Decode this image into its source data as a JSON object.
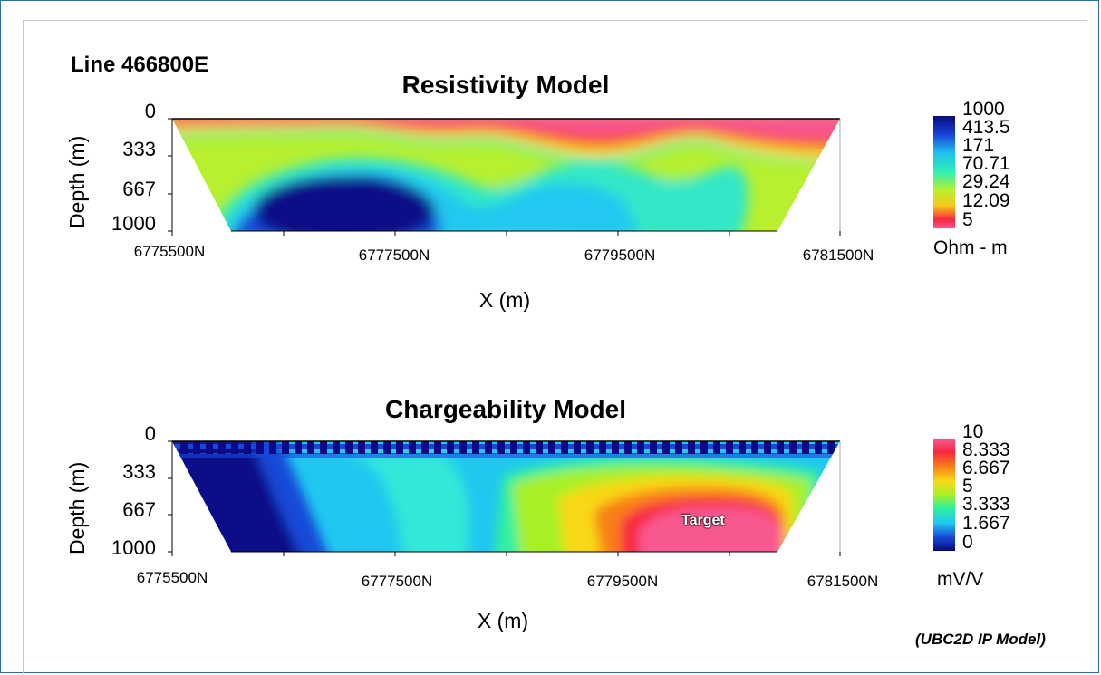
{
  "header": {
    "line_title": "Line 466800E",
    "footnote": "(UBC2D IP Model)"
  },
  "chart_data": [
    {
      "type": "heatmap",
      "title": "Resistivity Model",
      "xlabel": "X (m)",
      "ylabel": "Depth (m)",
      "x_ticks": [
        "6775500N",
        "6777500N",
        "6779500N",
        "6781500N"
      ],
      "y_ticks": [
        "0",
        "333",
        "667",
        "1000"
      ],
      "xlim": [
        6775500,
        6781500
      ],
      "ylim": [
        1000,
        0
      ],
      "colorbar": {
        "ticks": [
          "1000",
          "413.5",
          "171",
          "70.71",
          "29.24",
          "12.09",
          "5"
        ],
        "unit": "Ohm - m",
        "scale": "log",
        "colors": [
          "#0a0a78",
          "#1840d8",
          "#20c0f0",
          "#30f0b0",
          "#b8f030",
          "#f8c818",
          "#f82840",
          "#f85890"
        ]
      }
    },
    {
      "type": "heatmap",
      "title": "Chargeability Model",
      "xlabel": "X (m)",
      "ylabel": "Depth (m)",
      "x_ticks": [
        "6775500N",
        "6777500N",
        "6779500N",
        "6781500N"
      ],
      "y_ticks": [
        "0",
        "333",
        "667",
        "1000"
      ],
      "xlim": [
        6775500,
        6781500
      ],
      "ylim": [
        1000,
        0
      ],
      "annotation": "Target",
      "colorbar": {
        "ticks": [
          "10",
          "8.333",
          "6.667",
          "5",
          "3.333",
          "1.667",
          "0"
        ],
        "unit": "mV/V",
        "scale": "linear",
        "colors": [
          "#f85890",
          "#f82840",
          "#f88018",
          "#f8d818",
          "#a8f028",
          "#30f0a0",
          "#20c8f0",
          "#1848d8",
          "#0a0a78"
        ]
      }
    }
  ]
}
